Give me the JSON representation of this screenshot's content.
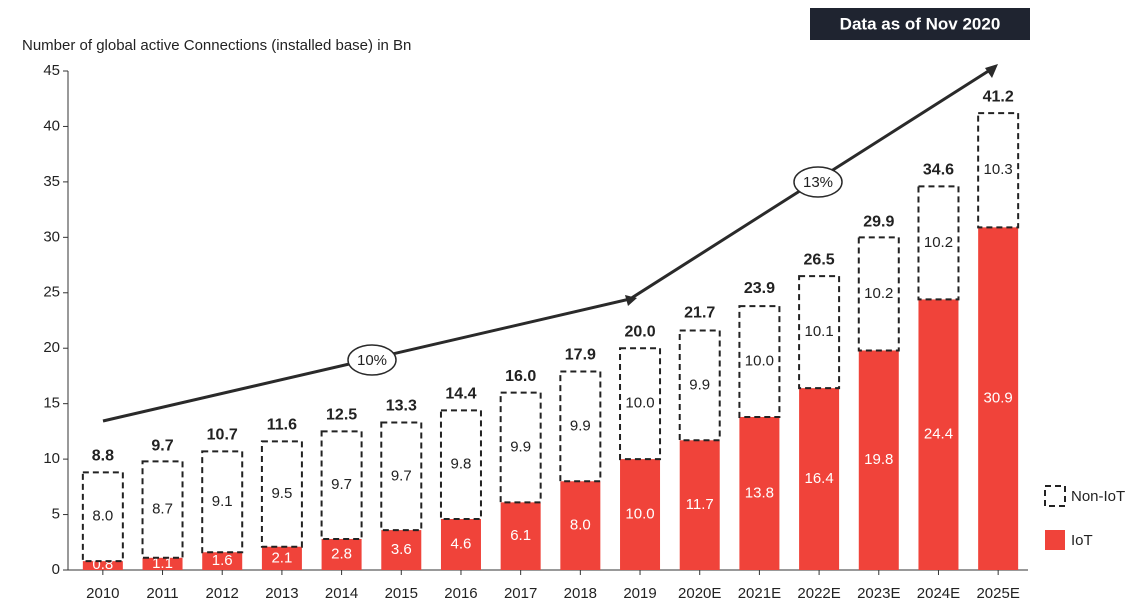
{
  "chart_data": {
    "type": "stacked-bar",
    "title": "Number of global active Connections (installed base) in Bn",
    "annotations": [
      "Data as of Nov 2020",
      "10%",
      "13%"
    ],
    "categories": [
      "2010",
      "2011",
      "2012",
      "2013",
      "2014",
      "2015",
      "2016",
      "2017",
      "2018",
      "2019",
      "2020E",
      "2021E",
      "2022E",
      "2023E",
      "2024E",
      "2025E"
    ],
    "series": [
      {
        "name": "IoT",
        "color": "#f0433a",
        "values": [
          0.8,
          1.1,
          1.6,
          2.1,
          2.8,
          3.6,
          4.6,
          6.1,
          8.0,
          10.0,
          11.7,
          13.8,
          16.4,
          19.8,
          24.4,
          30.9
        ]
      },
      {
        "name": "Non-IoT",
        "color": "#222222",
        "values": [
          8.0,
          8.7,
          9.1,
          9.5,
          9.7,
          9.7,
          9.8,
          9.9,
          9.9,
          10.0,
          9.9,
          10.0,
          10.1,
          10.2,
          10.2,
          10.3
        ]
      }
    ],
    "value_labels": [
      [
        "0.8",
        "1.1",
        "1.6",
        "2.1",
        "2.8",
        "3.6",
        "4.6",
        "6.1",
        "8.0",
        "10.0",
        "11.7",
        "13.8",
        "16.4",
        "19.8",
        "24.4",
        "30.9"
      ],
      [
        "8.0",
        "8.7",
        "9.1",
        "9.5",
        "9.7",
        "9.7",
        "9.8",
        "9.9",
        "9.9",
        "10.0",
        "9.9",
        "10.0",
        "10.1",
        "10.2",
        "10.2",
        "10.3"
      ]
    ],
    "totals": [
      8.8,
      9.7,
      10.7,
      11.6,
      12.5,
      13.3,
      14.4,
      16.0,
      17.9,
      20.0,
      21.7,
      23.9,
      26.5,
      29.9,
      34.6,
      41.2
    ],
    "total_labels": [
      "8.8",
      "9.7",
      "10.7",
      "11.6",
      "12.5",
      "13.3",
      "14.4",
      "16.0",
      "17.9",
      "20.0",
      "21.7",
      "23.9",
      "26.5",
      "29.9",
      "34.6",
      "41.2"
    ],
    "ylim": [
      0,
      45
    ],
    "yticks": [
      0,
      5,
      10,
      15,
      20,
      25,
      30,
      35,
      40,
      45
    ],
    "grid": false,
    "legend": "lower right"
  }
}
